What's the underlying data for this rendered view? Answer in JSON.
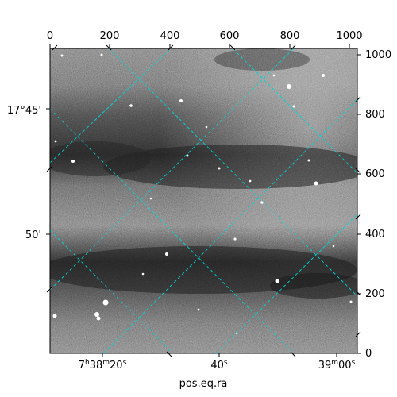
{
  "xlabel": "pos.eq.ra",
  "top_ticks": [
    "0",
    "200",
    "400",
    "600",
    "800",
    "1000"
  ],
  "right_ticks": [
    "0",
    "200",
    "400",
    "600",
    "800",
    "1000"
  ],
  "left_ticks": [
    "17°45'",
    "50'"
  ],
  "bottom_ticks": [
    {
      "main": "7",
      "sup1": "h",
      "mid": "38",
      "sup2": "m",
      "end": "20",
      "sup3": "s"
    },
    {
      "main": "40",
      "sup1": "s",
      "mid": "",
      "sup2": "",
      "end": "",
      "sup3": ""
    },
    {
      "main": "39",
      "sup1": "m",
      "mid": "00",
      "sup2": "s",
      "end": "",
      "sup3": ""
    }
  ],
  "grid_color": "#00d5d5",
  "image_style": "grayscale noise with dark horizontal bands and bright point sources"
}
